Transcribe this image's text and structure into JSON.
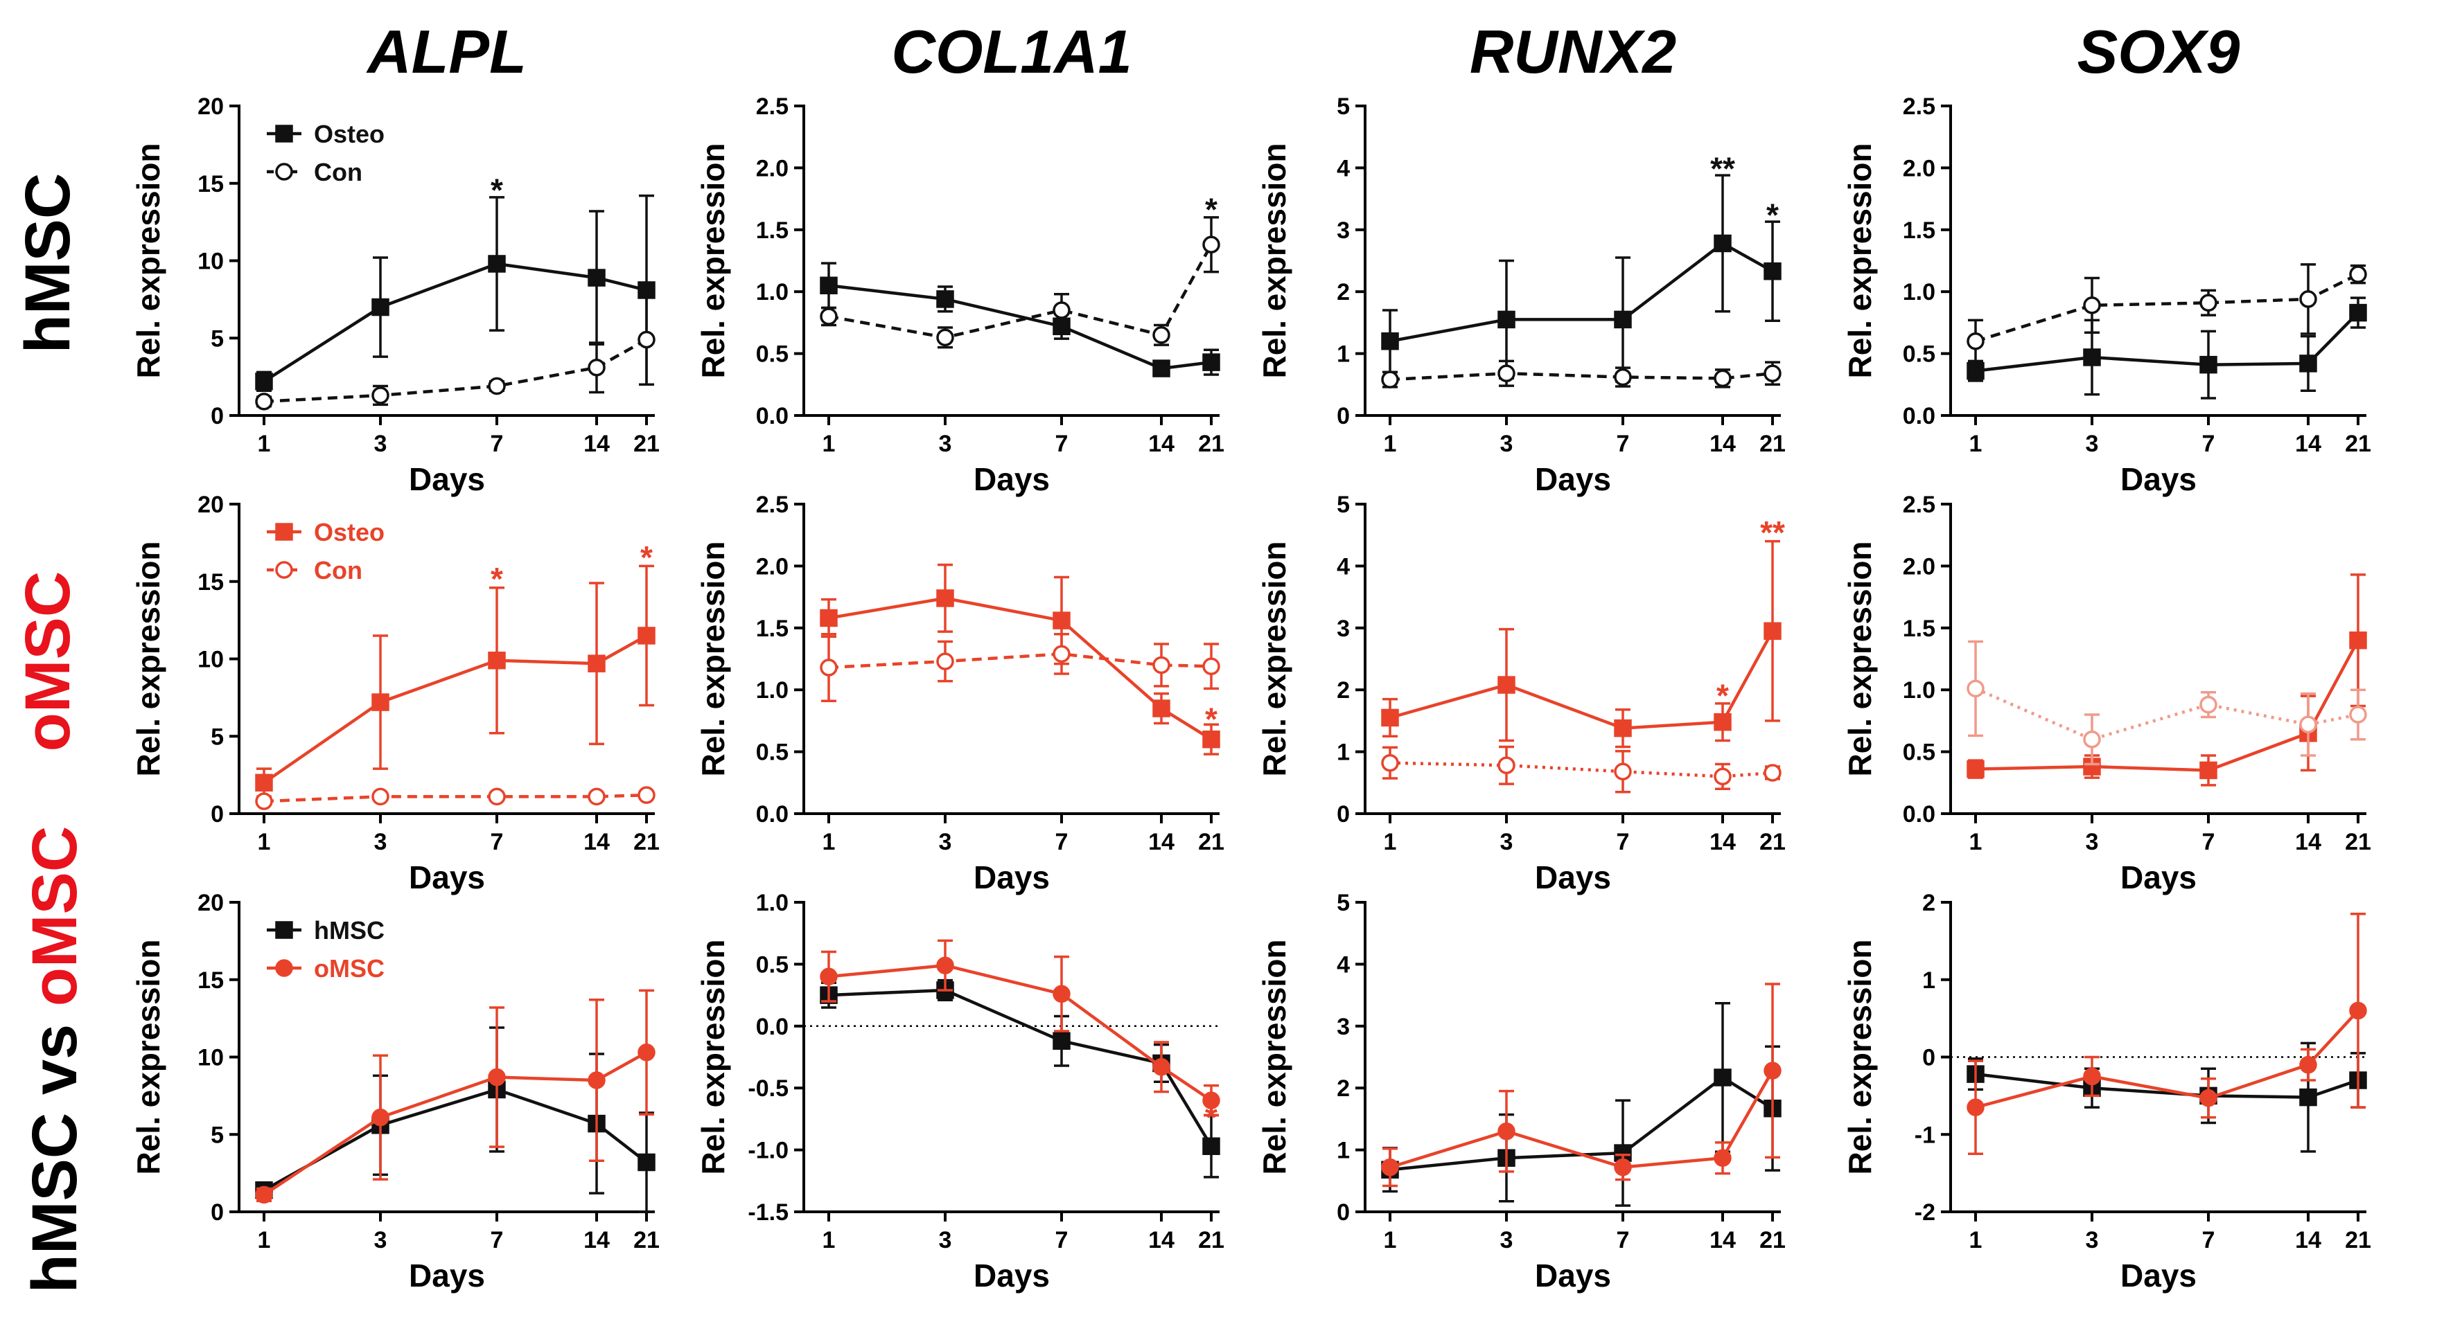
{
  "colors": {
    "black": "#111111",
    "red": "#e8432a",
    "light_red": "#f09a8a"
  },
  "chart_data": {
    "type": "line",
    "column_titles": [
      "ALPL",
      "COL1A1",
      "RUNX2",
      "SOX9"
    ],
    "row_labels": [
      [
        {
          "text": "hMSC",
          "color": "#000000"
        }
      ],
      [
        {
          "text": "oMSC",
          "color": "#e8131c"
        }
      ],
      [
        {
          "text": "hMSC vs ",
          "color": "#000000"
        },
        {
          "text": "oMSC",
          "color": "#e8131c"
        }
      ]
    ],
    "x_categories": [
      "1",
      "3",
      "7",
      "14",
      "21"
    ],
    "xlabel": "Days",
    "ylabel": "Rel. expression",
    "panels": [
      {
        "row": 0,
        "col": 0,
        "ylim": [
          0,
          20
        ],
        "yticks": [
          "0",
          "5",
          "10",
          "15",
          "20"
        ],
        "ytick_values": [
          0,
          5,
          10,
          15,
          20
        ],
        "legend": true,
        "series": [
          {
            "name": "Osteo",
            "style": "solid",
            "marker": "square",
            "filled": true,
            "color": "#111111",
            "values": [
              2.2,
              7.0,
              9.8,
              8.9,
              8.1
            ],
            "errors": [
              0.6,
              3.2,
              4.3,
              4.3,
              6.1
            ]
          },
          {
            "name": "Con",
            "style": "dashed",
            "marker": "circle",
            "filled": false,
            "color": "#111111",
            "values": [
              0.9,
              1.3,
              1.9,
              3.1,
              4.9
            ],
            "errors": [
              0.3,
              0.6,
              0.3,
              1.6,
              2.9
            ]
          }
        ],
        "stars": [
          {
            "x": "7",
            "y": 14.2,
            "text": "*",
            "color": "#111111"
          }
        ]
      },
      {
        "row": 0,
        "col": 1,
        "ylim": [
          0,
          2.5
        ],
        "yticks": [
          "0.0",
          "0.5",
          "1.0",
          "1.5",
          "2.0",
          "2.5"
        ],
        "ytick_values": [
          0,
          0.5,
          1,
          1.5,
          2,
          2.5
        ],
        "series": [
          {
            "name": "Osteo",
            "style": "solid",
            "marker": "square",
            "filled": true,
            "color": "#111111",
            "values": [
              1.05,
              0.94,
              0.72,
              0.38,
              0.43
            ],
            "errors": [
              0.18,
              0.1,
              0.1,
              0.06,
              0.1
            ]
          },
          {
            "name": "Con",
            "style": "dashed",
            "marker": "circle",
            "filled": false,
            "color": "#111111",
            "values": [
              0.8,
              0.63,
              0.85,
              0.65,
              1.38
            ],
            "errors": [
              0.07,
              0.08,
              0.13,
              0.08,
              0.22
            ]
          }
        ],
        "stars": [
          {
            "x": "21",
            "y": 1.62,
            "text": "*",
            "color": "#111111"
          }
        ]
      },
      {
        "row": 0,
        "col": 2,
        "ylim": [
          0,
          5
        ],
        "yticks": [
          "0",
          "1",
          "2",
          "3",
          "4",
          "5"
        ],
        "ytick_values": [
          0,
          1,
          2,
          3,
          4,
          5
        ],
        "series": [
          {
            "name": "Osteo",
            "style": "solid",
            "marker": "square",
            "filled": true,
            "color": "#111111",
            "values": [
              1.2,
              1.55,
              1.55,
              2.78,
              2.33
            ],
            "errors": [
              0.5,
              0.95,
              1.0,
              1.1,
              0.8
            ]
          },
          {
            "name": "Con",
            "style": "dashed",
            "marker": "circle",
            "filled": false,
            "color": "#111111",
            "values": [
              0.58,
              0.68,
              0.62,
              0.6,
              0.68
            ],
            "errors": [
              0.12,
              0.2,
              0.15,
              0.14,
              0.18
            ]
          }
        ],
        "stars": [
          {
            "x": "14",
            "y": 3.9,
            "text": "**",
            "color": "#111111"
          },
          {
            "x": "21",
            "y": 3.15,
            "text": "*",
            "color": "#111111"
          }
        ]
      },
      {
        "row": 0,
        "col": 3,
        "ylim": [
          0,
          2.5
        ],
        "yticks": [
          "0.0",
          "0.5",
          "1.0",
          "1.5",
          "2.0",
          "2.5"
        ],
        "ytick_values": [
          0,
          0.5,
          1,
          1.5,
          2,
          2.5
        ],
        "series": [
          {
            "name": "Osteo",
            "style": "solid",
            "marker": "square",
            "filled": true,
            "color": "#111111",
            "values": [
              0.36,
              0.47,
              0.41,
              0.42,
              0.83
            ],
            "errors": [
              0.08,
              0.3,
              0.27,
              0.22,
              0.12
            ]
          },
          {
            "name": "Con",
            "style": "dashed",
            "marker": "circle",
            "filled": false,
            "color": "#111111",
            "values": [
              0.6,
              0.89,
              0.91,
              0.94,
              1.14
            ],
            "errors": [
              0.17,
              0.22,
              0.1,
              0.28,
              0.07
            ]
          }
        ],
        "stars": []
      },
      {
        "row": 1,
        "col": 0,
        "ylim": [
          0,
          20
        ],
        "yticks": [
          "0",
          "5",
          "10",
          "15",
          "20"
        ],
        "ytick_values": [
          0,
          5,
          10,
          15,
          20
        ],
        "legend": true,
        "series": [
          {
            "name": "Osteo",
            "style": "solid",
            "marker": "square",
            "filled": true,
            "color": "#e8432a",
            "values": [
              2.0,
              7.2,
              9.9,
              9.7,
              11.5
            ],
            "errors": [
              0.9,
              4.3,
              4.7,
              5.2,
              4.5
            ]
          },
          {
            "name": "Con",
            "style": "dashed",
            "marker": "circle",
            "filled": false,
            "color": "#e8432a",
            "values": [
              0.8,
              1.1,
              1.1,
              1.1,
              1.2
            ],
            "errors": [
              0.1,
              0.1,
              0.1,
              0.1,
              0.2
            ]
          }
        ],
        "stars": [
          {
            "x": "7",
            "y": 14.8,
            "text": "*",
            "color": "#e8432a"
          },
          {
            "x": "21",
            "y": 16.2,
            "text": "*",
            "color": "#e8432a"
          }
        ]
      },
      {
        "row": 1,
        "col": 1,
        "ylim": [
          0,
          2.5
        ],
        "yticks": [
          "0.0",
          "0.5",
          "1.0",
          "1.5",
          "2.0",
          "2.5"
        ],
        "ytick_values": [
          0,
          0.5,
          1,
          1.5,
          2,
          2.5
        ],
        "series": [
          {
            "name": "Osteo",
            "style": "solid",
            "marker": "square",
            "filled": true,
            "color": "#e8432a",
            "values": [
              1.58,
              1.74,
              1.56,
              0.85,
              0.6
            ],
            "errors": [
              0.15,
              0.27,
              0.35,
              0.12,
              0.12
            ]
          },
          {
            "name": "Con",
            "style": "dashed",
            "marker": "circle",
            "filled": false,
            "color": "#e8432a",
            "values": [
              1.18,
              1.23,
              1.29,
              1.2,
              1.19
            ],
            "errors": [
              0.27,
              0.16,
              0.16,
              0.17,
              0.18
            ]
          }
        ],
        "stars": [
          {
            "x": "21",
            "y": 0.72,
            "text": "*",
            "color": "#e8432a"
          }
        ]
      },
      {
        "row": 1,
        "col": 2,
        "ylim": [
          0,
          5
        ],
        "yticks": [
          "0",
          "1",
          "2",
          "3",
          "4",
          "5"
        ],
        "ytick_values": [
          0,
          1,
          2,
          3,
          4,
          5
        ],
        "series": [
          {
            "name": "Osteo",
            "style": "solid",
            "marker": "square",
            "filled": true,
            "color": "#e8432a",
            "values": [
              1.55,
              2.08,
              1.38,
              1.48,
              2.95
            ],
            "errors": [
              0.3,
              0.9,
              0.3,
              0.3,
              1.45
            ]
          },
          {
            "name": "Con",
            "style": "dotted",
            "marker": "circle",
            "filled": false,
            "color": "#e8432a",
            "values": [
              0.82,
              0.78,
              0.68,
              0.6,
              0.66
            ],
            "errors": [
              0.25,
              0.3,
              0.33,
              0.2,
              0.1
            ]
          }
        ],
        "stars": [
          {
            "x": "14",
            "y": 1.82,
            "text": "*",
            "color": "#e8432a"
          },
          {
            "x": "21",
            "y": 4.45,
            "text": "**",
            "color": "#e8432a"
          }
        ]
      },
      {
        "row": 1,
        "col": 3,
        "ylim": [
          0,
          2.5
        ],
        "yticks": [
          "0.0",
          "0.5",
          "1.0",
          "1.5",
          "2.0",
          "2.5"
        ],
        "ytick_values": [
          0,
          0.5,
          1,
          1.5,
          2,
          2.5
        ],
        "series": [
          {
            "name": "Osteo",
            "style": "solid",
            "marker": "square",
            "filled": true,
            "color": "#e8432a",
            "values": [
              0.36,
              0.38,
              0.35,
              0.65,
              1.4
            ],
            "errors": [
              0.07,
              0.09,
              0.12,
              0.3,
              0.53
            ]
          },
          {
            "name": "Con",
            "style": "dotted",
            "marker": "circle",
            "filled": false,
            "color": "#f09a8a",
            "values": [
              1.01,
              0.6,
              0.88,
              0.72,
              0.8
            ],
            "errors": [
              0.38,
              0.2,
              0.1,
              0.25,
              0.2
            ]
          }
        ],
        "stars": []
      },
      {
        "row": 2,
        "col": 0,
        "ylim": [
          0,
          20
        ],
        "yticks": [
          "0",
          "5",
          "10",
          "15",
          "20"
        ],
        "ytick_values": [
          0,
          5,
          10,
          15,
          20
        ],
        "legend": true,
        "series": [
          {
            "name": "hMSC",
            "style": "solid",
            "marker": "square",
            "filled": true,
            "color": "#111111",
            "values": [
              1.4,
              5.6,
              7.9,
              5.7,
              3.2
            ],
            "errors": [
              0.3,
              3.2,
              4.0,
              4.5,
              3.2
            ]
          },
          {
            "name": "oMSC",
            "style": "solid",
            "marker": "circle",
            "filled": true,
            "color": "#e8432a",
            "values": [
              1.1,
              6.1,
              8.7,
              8.5,
              10.3
            ],
            "errors": [
              0.4,
              4.0,
              4.5,
              5.2,
              4.0
            ]
          }
        ],
        "stars": []
      },
      {
        "row": 2,
        "col": 1,
        "ylim": [
          -1.5,
          1.0
        ],
        "yticks": [
          "-1.5",
          "-1.0",
          "-0.5",
          "0.0",
          "0.5",
          "1.0"
        ],
        "ytick_values": [
          -1.5,
          -1,
          -0.5,
          0,
          0.5,
          1
        ],
        "zero_line": true,
        "series": [
          {
            "name": "hMSC",
            "style": "solid",
            "marker": "square",
            "filled": true,
            "color": "#111111",
            "values": [
              0.25,
              0.29,
              -0.12,
              -0.3,
              -0.97
            ],
            "errors": [
              0.1,
              0.08,
              0.2,
              0.15,
              0.25
            ]
          },
          {
            "name": "oMSC",
            "style": "solid",
            "marker": "circle",
            "filled": true,
            "color": "#e8432a",
            "values": [
              0.4,
              0.49,
              0.26,
              -0.33,
              -0.6
            ],
            "errors": [
              0.2,
              0.2,
              0.3,
              0.2,
              0.12
            ]
          }
        ],
        "stars": [
          {
            "x": "21",
            "y": -0.78,
            "text": "*",
            "color": "#e8432a"
          }
        ]
      },
      {
        "row": 2,
        "col": 2,
        "ylim": [
          0,
          5
        ],
        "yticks": [
          "0",
          "1",
          "2",
          "3",
          "4",
          "5"
        ],
        "ytick_values": [
          0,
          1,
          2,
          3,
          4,
          5
        ],
        "series": [
          {
            "name": "hMSC",
            "style": "solid",
            "marker": "square",
            "filled": true,
            "color": "#111111",
            "values": [
              0.68,
              0.87,
              0.95,
              2.17,
              1.67
            ],
            "errors": [
              0.35,
              0.7,
              0.85,
              1.2,
              1.0
            ]
          },
          {
            "name": "oMSC",
            "style": "solid",
            "marker": "circle",
            "filled": true,
            "color": "#e8432a",
            "values": [
              0.72,
              1.3,
              0.72,
              0.87,
              2.28
            ],
            "errors": [
              0.3,
              0.65,
              0.2,
              0.25,
              1.4
            ]
          }
        ],
        "stars": []
      },
      {
        "row": 2,
        "col": 3,
        "ylim": [
          -2,
          2
        ],
        "yticks": [
          "-2",
          "-1",
          "0",
          "1",
          "2"
        ],
        "ytick_values": [
          -2,
          -1,
          0,
          1,
          2
        ],
        "zero_line": true,
        "series": [
          {
            "name": "hMSC",
            "style": "solid",
            "marker": "square",
            "filled": true,
            "color": "#111111",
            "values": [
              -0.22,
              -0.4,
              -0.5,
              -0.52,
              -0.3
            ],
            "errors": [
              0.2,
              0.25,
              0.35,
              0.7,
              0.35
            ]
          },
          {
            "name": "oMSC",
            "style": "solid",
            "marker": "circle",
            "filled": true,
            "color": "#e8432a",
            "values": [
              -0.65,
              -0.25,
              -0.53,
              -0.1,
              0.6
            ],
            "errors": [
              0.6,
              0.25,
              0.25,
              0.2,
              1.25
            ]
          }
        ],
        "stars": []
      }
    ]
  }
}
